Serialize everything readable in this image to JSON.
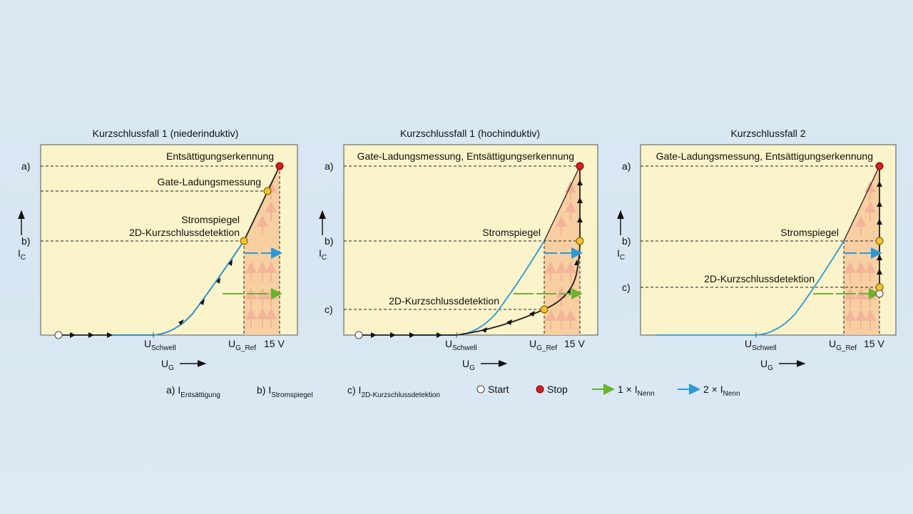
{
  "panels": [
    {
      "title": "Kurzschlussfall 1 (niederinduktiv)",
      "annotations": [
        "Entsättigungserkennung",
        "Gate-Ladungsmessung",
        "Stromspiegel",
        "2D-Kurzschlussdetektion"
      ],
      "y_levels": [
        "a)",
        "b)"
      ],
      "x_ticks": {
        "u_schwell_main": "U",
        "u_schwell_sub": "Schwell",
        "u_ref_main": "U",
        "u_ref_sub": "G_Ref",
        "v15": "15 V"
      },
      "y_axis": {
        "main": "I",
        "sub": "C"
      },
      "x_axis": {
        "main": "U",
        "sub": "G"
      }
    },
    {
      "title": "Kurzschlussfall 1 (hochinduktiv)",
      "annotations": [
        "Gate-Ladungsmessung, Entsättigungserkennung",
        "Stromspiegel",
        "2D-Kurzschlussdetektion"
      ],
      "y_levels": [
        "a)",
        "b)",
        "c)"
      ],
      "x_ticks": {
        "u_schwell_main": "U",
        "u_schwell_sub": "Schwell",
        "u_ref_main": "U",
        "u_ref_sub": "G_Ref",
        "v15": "15 V"
      },
      "y_axis": {
        "main": "I",
        "sub": "C"
      },
      "x_axis": {
        "main": "U",
        "sub": "G"
      }
    },
    {
      "title": "Kurzschlussfall 2",
      "annotations": [
        "Gate-Ladungsmessung, Entsättigungserkennung",
        "Stromspiegel",
        "2D-Kurzschlussdetektion"
      ],
      "y_levels": [
        "a)",
        "b)",
        "c)"
      ],
      "x_ticks": {
        "u_schwell_main": "U",
        "u_schwell_sub": "Schwell",
        "u_ref_main": "U",
        "u_ref_sub": "G_Ref",
        "v15": "15 V"
      },
      "y_axis": {
        "main": "I",
        "sub": "C"
      },
      "x_axis": {
        "main": "U",
        "sub": "G"
      }
    }
  ],
  "legend": {
    "a": {
      "prefix": "a) I",
      "sub": "Entsättigung"
    },
    "b": {
      "prefix": "b) I",
      "sub": "Stromspiegel"
    },
    "c": {
      "prefix": "c) I",
      "sub": "2D-Kurzschlussdetektion"
    },
    "start": "Start",
    "stop": "Stop",
    "one": {
      "prefix": "1 × I",
      "sub": "Nenn"
    },
    "two": {
      "prefix": "2 × I",
      "sub": "Nenn"
    }
  },
  "colors": {
    "panel_bg": "#fbf3c9",
    "shade": "#f7c89a",
    "curve_black": "#222222",
    "curve_blue": "#2a9ad6",
    "arrow_green": "#6ab42d",
    "arrow_blue": "#2a9ad6",
    "point_yellow": "#f2c230",
    "point_red": "#d81e1e",
    "point_white": "#ffffff"
  }
}
